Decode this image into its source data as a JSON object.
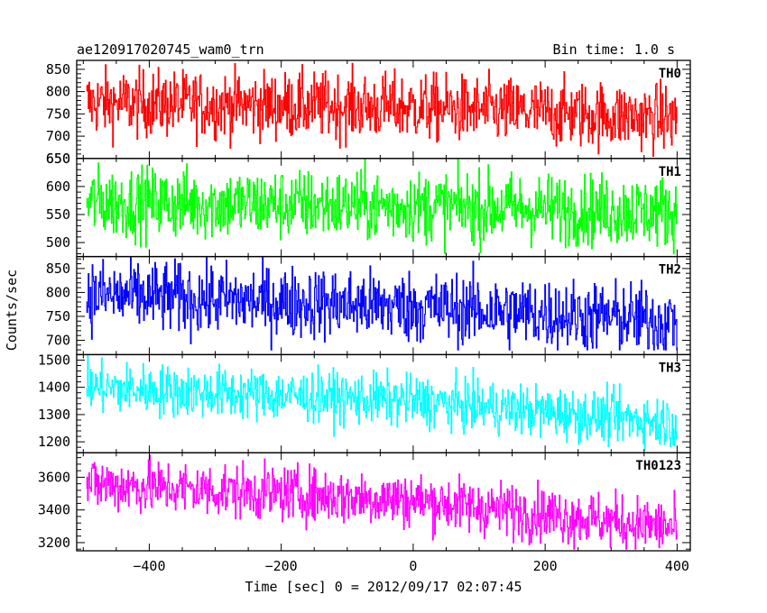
{
  "header": {
    "title": "ae120917020745_wam0_trn",
    "bin_time": "Bin time: 1.0 s"
  },
  "axes": {
    "ylabel": "Counts/sec",
    "xlabel": "Time [sec] 0 = 2012/09/17 02:07:45"
  },
  "chart_data": {
    "type": "line",
    "title": "ae120917020745_wam0_trn",
    "xlabel": "Time [sec] 0 = 2012/09/17 02:07:45",
    "ylabel": "Counts/sec",
    "xlim": [
      -510,
      420
    ],
    "x_ticks": [
      -400,
      -200,
      0,
      200,
      400
    ],
    "x_step": 1,
    "x_start": -495,
    "x_end": 400,
    "grid": false,
    "panels": [
      {
        "name": "TH0",
        "color": "#ff0000",
        "ylim": [
          650,
          870
        ],
        "y_ticks": [
          650,
          700,
          750,
          800,
          850
        ],
        "trend": [
          {
            "x": -495,
            "y": 775
          },
          {
            "x": 0,
            "y": 765
          },
          {
            "x": 400,
            "y": 740
          }
        ],
        "noise_sd": 38,
        "y_clip": [
          650,
          870
        ]
      },
      {
        "name": "TH1",
        "color": "#00ff00",
        "ylim": [
          475,
          650
        ],
        "y_ticks": [
          500,
          550,
          600,
          650
        ],
        "trend": [
          {
            "x": -495,
            "y": 572
          },
          {
            "x": 0,
            "y": 565
          },
          {
            "x": 400,
            "y": 555
          }
        ],
        "noise_sd": 32,
        "y_clip": [
          480,
          650
        ]
      },
      {
        "name": "TH2",
        "color": "#0000ff",
        "ylim": [
          670,
          875
        ],
        "y_ticks": [
          700,
          750,
          800,
          850
        ],
        "trend": [
          {
            "x": -495,
            "y": 795
          },
          {
            "x": 0,
            "y": 770
          },
          {
            "x": 400,
            "y": 740
          }
        ],
        "noise_sd": 38,
        "y_clip": [
          680,
          875
        ]
      },
      {
        "name": "TH3",
        "color": "#00ffff",
        "ylim": [
          1160,
          1520
        ],
        "y_ticks": [
          1200,
          1300,
          1400,
          1500
        ],
        "trend": [
          {
            "x": -495,
            "y": 1400
          },
          {
            "x": 0,
            "y": 1350
          },
          {
            "x": 400,
            "y": 1270
          }
        ],
        "noise_sd": 48,
        "y_clip": [
          1170,
          1520
        ]
      },
      {
        "name": "TH0123",
        "color": "#ff00ff",
        "ylim": [
          3150,
          3750
        ],
        "y_ticks": [
          3200,
          3400,
          3600
        ],
        "trend": [
          {
            "x": -495,
            "y": 3560
          },
          {
            "x": 0,
            "y": 3460
          },
          {
            "x": 400,
            "y": 3290
          }
        ],
        "noise_sd": 85,
        "y_clip": [
          3160,
          3750
        ]
      }
    ]
  }
}
